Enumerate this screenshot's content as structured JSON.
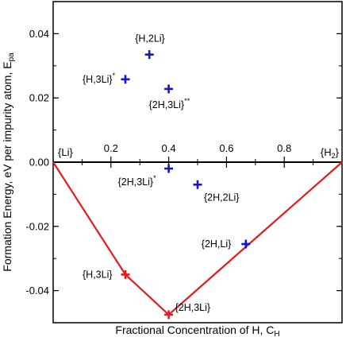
{
  "chart_data": {
    "type": "scatter",
    "xlabel": "Fractional Concentration of H, C",
    "xlabel_sub": "H",
    "ylabel": "Formation Energy, eV per impurity atom, E",
    "ylabel_sub": "pa",
    "xlim": [
      0,
      1
    ],
    "ylim": [
      -0.05,
      0.05
    ],
    "x_ticks": [
      0.2,
      0.4,
      0.6,
      0.8
    ],
    "x_tick_labels": [
      "0.2",
      "0.4",
      "0.6",
      "0.8"
    ],
    "y_ticks": [
      0.04,
      0.02,
      0.0,
      -0.02,
      -0.04
    ],
    "y_tick_labels": [
      "0.04",
      "0.02",
      "0.00",
      "-0.02",
      "-0.04"
    ],
    "end_labels": {
      "left": "{Li}",
      "right_main": "{H",
      "right_sub": "2",
      "right_close": "}"
    },
    "hull": {
      "color": "#e8191b",
      "x": [
        0,
        0.25,
        0.4,
        1.0
      ],
      "y": [
        0,
        -0.035,
        -0.0475,
        0
      ]
    },
    "points": [
      {
        "x": 0.333,
        "y": 0.0335,
        "label": "{H,2Li}",
        "sup": "",
        "color": "#1414d2"
      },
      {
        "x": 0.25,
        "y": 0.0258,
        "label": "{H,3Li}",
        "sup": "*",
        "color": "#1414d2"
      },
      {
        "x": 0.4,
        "y": 0.0228,
        "label": "{2H,3Li}",
        "sup": "**",
        "color": "#1414d2"
      },
      {
        "x": 0.4,
        "y": -0.002,
        "label": "{2H,3Li}",
        "sup": "*",
        "color": "#1414d2"
      },
      {
        "x": 0.5,
        "y": -0.007,
        "label": "{2H,2Li}",
        "sup": "",
        "color": "#1414d2"
      },
      {
        "x": 0.667,
        "y": -0.0255,
        "label": "{2H,Li}",
        "sup": "",
        "color": "#1414d2"
      },
      {
        "x": 0.25,
        "y": -0.035,
        "label": "{H,3Li}",
        "sup": "",
        "color": "#e8191b"
      },
      {
        "x": 0.4,
        "y": -0.0475,
        "label": "{2H,3Li}",
        "sup": "",
        "color": "#e8191b"
      }
    ]
  }
}
